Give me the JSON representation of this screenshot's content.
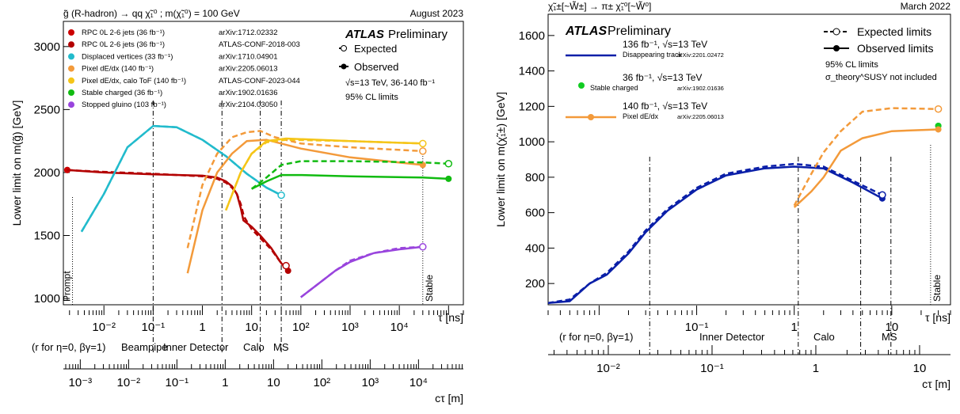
{
  "chart_data": [
    {
      "type": "line",
      "title": "g̃ (R-hadron) → qq χ̃₁⁰ ; m(χ̃₁⁰) = 100 GeV",
      "date": "August 2023",
      "brand": "ATLAS",
      "brand_sub": "Preliminary",
      "ylabel": "Lower limit on m(g̃) [GeV]",
      "xlabel": "τ [ns]",
      "x_scale": "log",
      "xlim": [
        0.0015,
        200000
      ],
      "ylim": [
        950,
        3200
      ],
      "y_ticks": [
        1000,
        1500,
        2000,
        2500,
        3000
      ],
      "x_ticks": [
        {
          "v": 0.01,
          "t": "10⁻²"
        },
        {
          "v": 0.1,
          "t": "10⁻¹"
        },
        {
          "v": 1,
          "t": "1"
        },
        {
          "v": 10,
          "t": "10"
        },
        {
          "v": 100,
          "t": "10²"
        },
        {
          "v": 1000,
          "t": "10³"
        },
        {
          "v": 10000,
          "t": "10⁴"
        }
      ],
      "cdelta_label": "cτ [m]",
      "cdelta_ticks": [
        {
          "v": 0.001,
          "t": "10⁻³"
        },
        {
          "v": 0.01,
          "t": "10⁻²"
        },
        {
          "v": 0.1,
          "t": "10⁻¹"
        },
        {
          "v": 1,
          "t": "1"
        },
        {
          "v": 10,
          "t": "10"
        },
        {
          "v": 100,
          "t": "10²"
        },
        {
          "v": 1000,
          "t": "10³"
        },
        {
          "v": 10000,
          "t": "10⁴"
        }
      ],
      "region_labels": [
        "(r for η=0, βγ=1)",
        "Beampipe",
        "Inner Detector",
        "Calo",
        "MS"
      ],
      "prompt_label": "Prompt",
      "stable_label": "Stable",
      "legend_style": [
        "Expected",
        "Observed"
      ],
      "info_lines": [
        "√s=13 TeV, 36-140 fb⁻¹",
        "95% CL limits"
      ],
      "series": [
        {
          "name": "RPC 0L 2-6 jets (36 fb⁻¹)",
          "ref": "arXiv:1712.02332",
          "color": "#cc0000",
          "marker": true,
          "observed": [
            [
              0.0018,
              2020
            ]
          ]
        },
        {
          "name": "RPC 0L 2-6 jets (36 fb⁻¹)",
          "ref": "ATLAS-CONF-2018-003",
          "color": "#b30000",
          "expected": [
            [
              0.0018,
              2020
            ],
            [
              0.01,
              2005
            ],
            [
              0.1,
              1990
            ],
            [
              1,
              1970
            ],
            [
              2,
              1950
            ],
            [
              3,
              1920
            ],
            [
              4,
              1880
            ],
            [
              5,
              1830
            ],
            [
              6,
              1750
            ],
            [
              7,
              1650
            ],
            [
              10,
              1550
            ],
            [
              15,
              1480
            ],
            [
              25,
              1390
            ],
            [
              40,
              1280
            ],
            [
              50,
              1260
            ]
          ],
          "observed": [
            [
              0.0018,
              2020
            ],
            [
              0.01,
              2000
            ],
            [
              0.1,
              1985
            ],
            [
              1,
              1975
            ],
            [
              2,
              1960
            ],
            [
              3,
              1930
            ],
            [
              4,
              1890
            ],
            [
              5,
              1830
            ],
            [
              6,
              1720
            ],
            [
              6.8,
              1620
            ],
            [
              10,
              1570
            ],
            [
              15,
              1500
            ],
            [
              25,
              1400
            ],
            [
              40,
              1280
            ],
            [
              55,
              1220
            ]
          ]
        },
        {
          "name": "Displaced vertices (33 fb⁻¹)",
          "ref": "arXiv:1710.04901",
          "color": "#22bbcc",
          "expected": [
            [
              0.0035,
              1530
            ],
            [
              0.01,
              1830
            ],
            [
              0.03,
              2200
            ],
            [
              0.1,
              2370
            ],
            [
              0.3,
              2360
            ],
            [
              1,
              2260
            ],
            [
              3,
              2130
            ],
            [
              8,
              1990
            ],
            [
              20,
              1880
            ],
            [
              40,
              1820
            ]
          ],
          "observed": [
            [
              0.0035,
              1530
            ],
            [
              0.01,
              1830
            ],
            [
              0.03,
              2200
            ],
            [
              0.1,
              2370
            ],
            [
              0.3,
              2360
            ],
            [
              1,
              2260
            ],
            [
              3,
              2130
            ],
            [
              8,
              1990
            ],
            [
              20,
              1880
            ],
            [
              40,
              1820
            ]
          ]
        },
        {
          "name": "Pixel dE/dx (140 fb⁻¹)",
          "ref": "arXiv:2205.06013",
          "color": "#f39a3a",
          "expected": [
            [
              0.5,
              1400
            ],
            [
              1,
              1900
            ],
            [
              2,
              2150
            ],
            [
              4,
              2280
            ],
            [
              8,
              2320
            ],
            [
              15,
              2330
            ],
            [
              30,
              2280
            ],
            [
              100,
              2230
            ],
            [
              1000,
              2200
            ],
            [
              30000,
              2170
            ]
          ],
          "observed": [
            [
              0.5,
              1200
            ],
            [
              1,
              1700
            ],
            [
              2,
              2000
            ],
            [
              4,
              2150
            ],
            [
              8,
              2250
            ],
            [
              20,
              2260
            ],
            [
              100,
              2190
            ],
            [
              1000,
              2120
            ],
            [
              30000,
              2060
            ]
          ]
        },
        {
          "name": "Pixel dE/dx, calo ToF (140 fb⁻¹)",
          "ref": "ATLAS-CONF-2023-044",
          "color": "#f5c518",
          "expected": [
            [
              3,
              1700
            ],
            [
              6,
              2000
            ],
            [
              10,
              2150
            ],
            [
              20,
              2240
            ],
            [
              50,
              2260
            ],
            [
              1000,
              2250
            ],
            [
              30000,
              2230
            ]
          ],
          "observed": [
            [
              3,
              1700
            ],
            [
              6,
              2000
            ],
            [
              10,
              2150
            ],
            [
              20,
              2250
            ],
            [
              50,
              2270
            ],
            [
              1000,
              2250
            ],
            [
              30000,
              2230
            ]
          ]
        },
        {
          "name": "Stable charged (36 fb⁻¹)",
          "ref": "arXiv:1902.01636",
          "color": "#11bb11",
          "expected": [
            [
              10,
              1870
            ],
            [
              20,
              1960
            ],
            [
              40,
              2060
            ],
            [
              100,
              2090
            ],
            [
              1000,
              2090
            ],
            [
              30000,
              2080
            ],
            [
              100000,
              2070
            ]
          ],
          "observed": [
            [
              10,
              1870
            ],
            [
              20,
              1930
            ],
            [
              40,
              1980
            ],
            [
              100,
              1980
            ],
            [
              1000,
              1970
            ],
            [
              30000,
              1960
            ],
            [
              100000,
              1950
            ]
          ]
        },
        {
          "name": "Stopped gluino (103 fb⁻¹)",
          "ref": "arXiv:2104.03050",
          "color": "#9944dd",
          "expected": [
            [
              100,
              1010
            ],
            [
              200,
              1100
            ],
            [
              500,
              1220
            ],
            [
              1000,
              1300
            ],
            [
              3000,
              1360
            ],
            [
              10000,
              1400
            ],
            [
              30000,
              1410
            ]
          ],
          "observed": [
            [
              100,
              1010
            ],
            [
              200,
              1100
            ],
            [
              500,
              1220
            ],
            [
              1000,
              1290
            ],
            [
              3000,
              1360
            ],
            [
              10000,
              1390
            ],
            [
              30000,
              1410
            ]
          ]
        }
      ]
    },
    {
      "type": "line",
      "title": "χ̃₁±[~W̃±] → π± χ̃₁⁰[~W̃⁰]",
      "date": "March 2022",
      "brand": "ATLAS",
      "brand_sub": "Preliminary",
      "ylabel": "Lower limit on m(χ̃₁±) [GeV]",
      "xlabel": "τ [ns]",
      "x_scale": "log",
      "xlim": [
        0.003,
        40
      ],
      "ylim": [
        80,
        1720
      ],
      "y_ticks": [
        200,
        400,
        600,
        800,
        1000,
        1200,
        1400,
        1600
      ],
      "x_ticks": [
        {
          "v": 0.1,
          "t": "10⁻¹"
        },
        {
          "v": 1,
          "t": "1"
        },
        {
          "v": 10,
          "t": "10"
        }
      ],
      "cdelta_label": "cτ [m]",
      "cdelta_ticks": [
        {
          "v": 0.01,
          "t": "10⁻²"
        },
        {
          "v": 0.1,
          "t": "10⁻¹"
        },
        {
          "v": 1,
          "t": "1"
        },
        {
          "v": 10,
          "t": "10"
        }
      ],
      "region_labels": [
        "(r for η=0, βγ=1)",
        "Inner Detector",
        "Calo",
        "MS"
      ],
      "stable_label": "Stable",
      "legend_style": [
        "Expected limits",
        "Observed limits"
      ],
      "info_lines": [
        "95% CL limits",
        "σ_theory^SUSY not included"
      ],
      "series": [
        {
          "name": "136 fb⁻¹, √s=13 TeV",
          "sub": "Disappearing track",
          "ref": "arXiv:2201.02472",
          "color": "#0a1fa8",
          "expected": [
            [
              0.003,
              90
            ],
            [
              0.005,
              110
            ],
            [
              0.008,
              200
            ],
            [
              0.012,
              260
            ],
            [
              0.02,
              380
            ],
            [
              0.03,
              500
            ],
            [
              0.05,
              620
            ],
            [
              0.1,
              740
            ],
            [
              0.2,
              820
            ],
            [
              0.5,
              860
            ],
            [
              1,
              875
            ],
            [
              2,
              860
            ],
            [
              4,
              780
            ],
            [
              8,
              700
            ]
          ],
          "observed": [
            [
              0.003,
              90
            ],
            [
              0.005,
              100
            ],
            [
              0.008,
              200
            ],
            [
              0.012,
              250
            ],
            [
              0.02,
              370
            ],
            [
              0.03,
              490
            ],
            [
              0.05,
              610
            ],
            [
              0.1,
              730
            ],
            [
              0.2,
              810
            ],
            [
              0.5,
              850
            ],
            [
              1,
              860
            ],
            [
              2,
              850
            ],
            [
              4,
              770
            ],
            [
              8,
              680
            ]
          ]
        },
        {
          "name": "36 fb⁻¹, √s=13 TeV",
          "sub": "Stable charged",
          "ref": "arXiv:1902.01636",
          "color": "#11cc22",
          "marker": true,
          "observed": [
            [
              30,
              1090
            ]
          ]
        },
        {
          "name": "140 fb⁻¹, √s=13 TeV",
          "sub": "Pixel dE/dx",
          "ref": "arXiv:2205.06013",
          "color": "#f39a3a",
          "expected": [
            [
              1,
              640
            ],
            [
              1.5,
              820
            ],
            [
              2,
              940
            ],
            [
              3,
              1060
            ],
            [
              5,
              1170
            ],
            [
              10,
              1190
            ],
            [
              30,
              1185
            ]
          ],
          "observed": [
            [
              1,
              630
            ],
            [
              1.5,
              720
            ],
            [
              2,
              800
            ],
            [
              3,
              950
            ],
            [
              5,
              1020
            ],
            [
              10,
              1060
            ],
            [
              30,
              1070
            ]
          ]
        }
      ]
    }
  ]
}
